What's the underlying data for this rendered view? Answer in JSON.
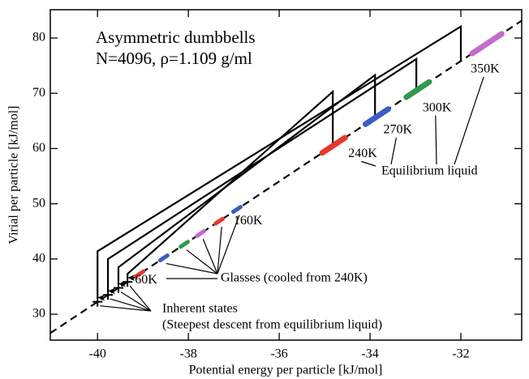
{
  "chart_data": {
    "type": "line",
    "title": "Asymmetric dumbbells",
    "subtitle": "N=4096, ρ=1.109 g/ml",
    "xlabel": "Potential energy per particle  [kJ/mol]",
    "ylabel": "Virial per particle  [kJ/mol]",
    "xlim": [
      -41.04,
      -30.66
    ],
    "ylim": [
      25.31,
      85.13
    ],
    "xticks": [
      -40,
      -38,
      -36,
      -34,
      -32
    ],
    "yticks": [
      30,
      40,
      50,
      60,
      70,
      80
    ],
    "reference": {
      "color": "#000000",
      "dash": true,
      "x": [
        -41.04,
        -30.66
      ],
      "y": [
        26.58,
        83.15
      ]
    },
    "quench_paths": [
      {
        "x": [
          -34.82,
          -34.82,
          -39.34,
          -39.34
        ],
        "y": [
          60.5,
          70.3,
          37.3,
          36.6
        ]
      },
      {
        "x": [
          -33.89,
          -33.89,
          -39.54,
          -39.54
        ],
        "y": [
          65.5,
          73.3,
          38.5,
          35.5
        ]
      },
      {
        "x": [
          -32.98,
          -32.98,
          -39.77,
          -39.77
        ],
        "y": [
          70.5,
          76.2,
          40.0,
          34.2
        ]
      },
      {
        "x": [
          -32.0,
          -32.0,
          -40.0,
          -40.0
        ],
        "y": [
          75.85,
          82.1,
          41.4,
          33.0
        ]
      }
    ],
    "inherent_states": {
      "label": "Inherent states",
      "note": "(Steepest descent from equilibrium liquid)",
      "x": [
        -40.0,
        -39.77,
        -39.54,
        -39.34
      ],
      "y": [
        32.25,
        33.5,
        34.76,
        35.85
      ]
    },
    "liquid": {
      "label": "Equilibrium liquid",
      "series": [
        {
          "label": "240K",
          "color": "#e5392c",
          "x": [
            -35.05,
            -34.55
          ],
          "y": [
            59.23,
            61.95
          ]
        },
        {
          "label": "270K",
          "color": "#3a5cc6",
          "x": [
            -34.1,
            -33.6
          ],
          "y": [
            64.41,
            67.13
          ]
        },
        {
          "label": "300K",
          "color": "#2f9a4a",
          "x": [
            -33.2,
            -32.7
          ],
          "y": [
            69.31,
            72.04
          ]
        },
        {
          "label": "350K",
          "color": "#c46bcb",
          "x": [
            -31.75,
            -31.1
          ],
          "y": [
            77.21,
            80.76
          ]
        }
      ]
    },
    "glasses": {
      "label": "Glasses (cooled from 240K)",
      "series": [
        {
          "label": "60K",
          "color": "#e5392c",
          "x": [
            -39.15,
            -38.99
          ],
          "y": [
            36.88,
            37.75
          ]
        },
        {
          "label": null,
          "color": "#3a5cc6",
          "x": [
            -38.62,
            -38.46
          ],
          "y": [
            39.77,
            40.64
          ]
        },
        {
          "label": null,
          "color": "#2f9a4a",
          "x": [
            -38.17,
            -38.01
          ],
          "y": [
            42.22,
            43.1
          ]
        },
        {
          "label": null,
          "color": "#c46bcb",
          "x": [
            -37.81,
            -37.65
          ],
          "y": [
            44.19,
            45.06
          ]
        },
        {
          "label": null,
          "color": "#e5392c",
          "x": [
            -37.4,
            -37.24
          ],
          "y": [
            46.42,
            47.29
          ]
        },
        {
          "label": "160K",
          "color": "#3a5cc6",
          "x": [
            -37.01,
            -36.85
          ],
          "y": [
            48.55,
            49.42
          ]
        }
      ]
    }
  }
}
